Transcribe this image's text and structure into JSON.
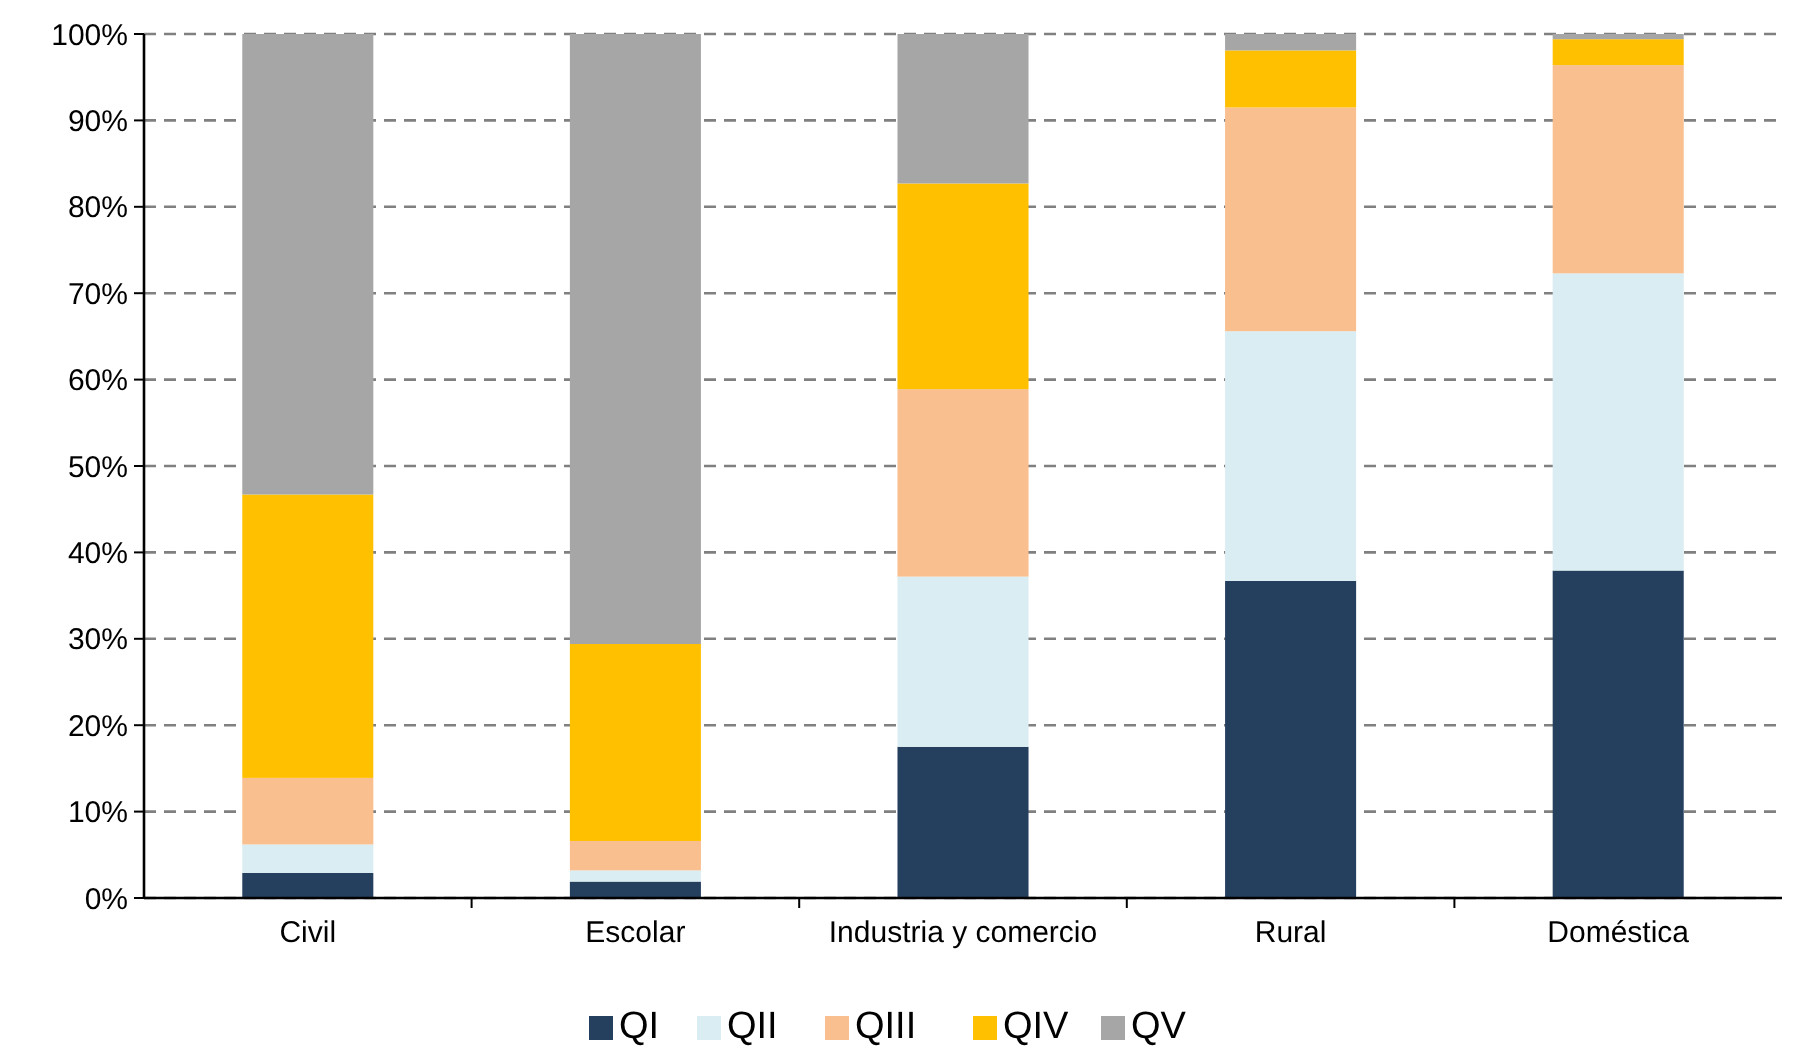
{
  "chart_data": {
    "type": "bar",
    "stacked": true,
    "categories": [
      "Civil",
      "Escolar",
      "Industria y comercio",
      "Rural",
      "Doméstica"
    ],
    "series": [
      {
        "name": "QI",
        "color": "#253f5f",
        "values": [
          2.9,
          1.9,
          17.5,
          36.7,
          37.9
        ]
      },
      {
        "name": "QII",
        "color": "#daedf3",
        "values": [
          3.3,
          1.3,
          19.7,
          28.9,
          34.4
        ]
      },
      {
        "name": "QIII",
        "color": "#f9bf8f",
        "values": [
          7.7,
          3.4,
          21.7,
          25.9,
          24.1
        ]
      },
      {
        "name": "QIV",
        "color": "#ffc000",
        "values": [
          32.8,
          22.8,
          23.8,
          6.6,
          3.0
        ]
      },
      {
        "name": "QV",
        "color": "#a6a6a6",
        "values": [
          53.3,
          70.6,
          17.3,
          1.9,
          0.6
        ]
      }
    ],
    "ylim": [
      0,
      100
    ],
    "yticks": [
      {
        "value": 0,
        "label": "0%"
      },
      {
        "value": 10,
        "label": "10%"
      },
      {
        "value": 20,
        "label": "20%"
      },
      {
        "value": 30,
        "label": "30%"
      },
      {
        "value": 40,
        "label": "40%"
      },
      {
        "value": 50,
        "label": "50%"
      },
      {
        "value": 60,
        "label": "60%"
      },
      {
        "value": 70,
        "label": "70%"
      },
      {
        "value": 80,
        "label": "80%"
      },
      {
        "value": 90,
        "label": "90%"
      },
      {
        "value": 100,
        "label": "100%"
      }
    ],
    "grid": "y",
    "legend": "bottom"
  }
}
